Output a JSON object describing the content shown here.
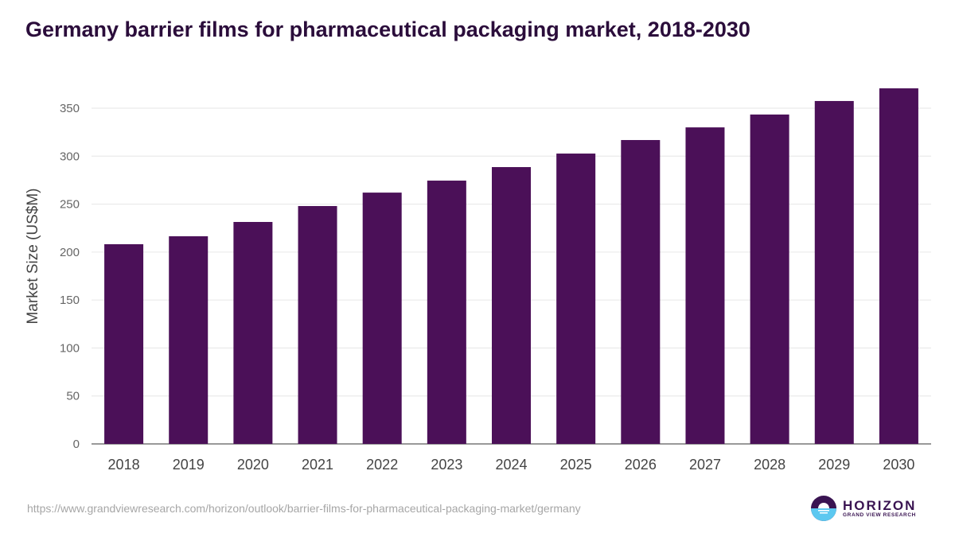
{
  "chart_data": {
    "type": "bar",
    "title": "Germany barrier films for pharmaceutical packaging market, 2018-2030",
    "xlabel": "",
    "ylabel": "Market Size (US$M)",
    "ylim": [
      0,
      375
    ],
    "yticks": [
      0,
      50,
      100,
      150,
      200,
      250,
      300,
      350
    ],
    "grid": true,
    "categories": [
      "2018",
      "2019",
      "2020",
      "2021",
      "2022",
      "2023",
      "2024",
      "2025",
      "2026",
      "2027",
      "2028",
      "2029",
      "2030"
    ],
    "values": [
      208.2,
      216.5,
      231.4,
      248.0,
      262.0,
      274.5,
      288.6,
      302.7,
      316.8,
      330.0,
      343.4,
      357.5,
      370.7
    ],
    "bar_color": "#4b1058"
  },
  "source_url": "https://www.grandviewresearch.com/horizon/outlook/barrier-films-for-pharmaceutical-packaging-market/germany",
  "logo": {
    "name": "HORIZON",
    "sub": "GRAND VIEW RESEARCH"
  }
}
